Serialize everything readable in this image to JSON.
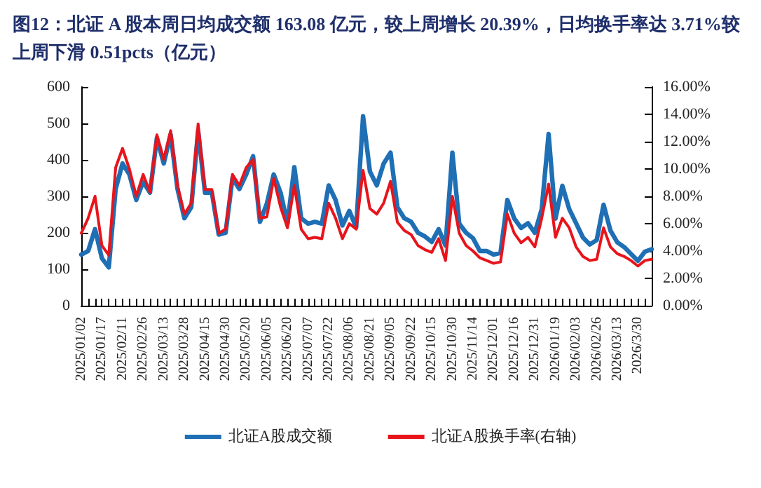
{
  "chart_data": {
    "type": "line",
    "title": "图12：北证 A 股本周日均成交额 163.08 亿元，较上周增长 20.39%，日均换手率达 3.71%较上周下滑 0.51pcts（亿元）",
    "categories": [
      "2025/01/02",
      null,
      null,
      "2025/01/17",
      null,
      null,
      "2025/02/11",
      null,
      null,
      "2025/02/26",
      null,
      null,
      "2025/03/13",
      null,
      null,
      "2025/03/28",
      null,
      null,
      "2025/04/15",
      null,
      null,
      "2025/04/30",
      null,
      null,
      "2025/05/20",
      null,
      null,
      "2025/06/05",
      null,
      null,
      "2025/06/20",
      null,
      null,
      "2025/07/07",
      null,
      null,
      "2025/07/22",
      null,
      null,
      "2025/08/06",
      null,
      null,
      "2025/08/21",
      null,
      null,
      "2025/09/05",
      null,
      null,
      "2025/09/22",
      null,
      null,
      "2025/10/15",
      null,
      null,
      "2025/10/30",
      null,
      null,
      "2025/11/14",
      null,
      null,
      "2025/12/01",
      null,
      null,
      "2025/12/16",
      null,
      null,
      "2025/12/31",
      null,
      null,
      "2026/01/19",
      null,
      null,
      "2026/02/03",
      null,
      null,
      "2026/02/26",
      null,
      null,
      "2026/03/13",
      null,
      null,
      "2026/3/30",
      null,
      null
    ],
    "series": [
      {
        "name": "北证A股成交额",
        "color": "#1f6fb5",
        "values": [
          140,
          150,
          210,
          130,
          105,
          320,
          390,
          360,
          290,
          340,
          310,
          460,
          390,
          470,
          320,
          240,
          270,
          480,
          310,
          310,
          195,
          200,
          350,
          320,
          360,
          410,
          230,
          280,
          360,
          310,
          225,
          380,
          240,
          225,
          230,
          225,
          330,
          290,
          220,
          260,
          215,
          520,
          368,
          330,
          390,
          420,
          270,
          240,
          230,
          200,
          190,
          175,
          210,
          165,
          420,
          225,
          200,
          185,
          150,
          150,
          140,
          145,
          290,
          239,
          213,
          226,
          200,
          265,
          471,
          239,
          329,
          265,
          226,
          187,
          168,
          180,
          277,
          206,
          174,
          161,
          142,
          123,
          148,
          155
        ]
      },
      {
        "name": "北证A股换手率(右轴)",
        "color": "#e8141b",
        "axis": "y2",
        "values": [
          5.3,
          6.4,
          8.0,
          4.4,
          3.7,
          10.1,
          11.5,
          10.0,
          8.0,
          9.6,
          8.3,
          12.5,
          10.7,
          12.8,
          8.8,
          6.7,
          7.5,
          13.3,
          8.5,
          8.5,
          5.3,
          5.6,
          9.6,
          8.8,
          10.1,
          10.7,
          6.4,
          6.5,
          9.3,
          7.2,
          5.7,
          8.8,
          5.6,
          4.9,
          5.0,
          4.9,
          7.5,
          6.4,
          4.9,
          6.0,
          5.6,
          9.9,
          7.1,
          6.7,
          7.5,
          9.1,
          6.1,
          5.5,
          5.2,
          4.4,
          4.1,
          3.9,
          4.9,
          3.3,
          8.0,
          5.3,
          4.4,
          4.0,
          3.5,
          3.3,
          3.1,
          3.2,
          6.7,
          5.3,
          4.6,
          5.0,
          4.3,
          6.4,
          8.9,
          5.0,
          6.4,
          5.7,
          4.3,
          3.6,
          3.3,
          3.4,
          5.7,
          4.3,
          3.8,
          3.6,
          3.3,
          2.9,
          3.3,
          3.4
        ]
      }
    ],
    "ylim": [
      0,
      600
    ],
    "yticks": [
      0,
      100,
      200,
      300,
      400,
      500,
      600
    ],
    "y2lim": [
      0,
      16
    ],
    "y2ticks": [
      {
        "value": 0,
        "label": "0.00%"
      },
      {
        "value": 2,
        "label": "2.00%"
      },
      {
        "value": 4,
        "label": "4.00%"
      },
      {
        "value": 6,
        "label": "6.00%"
      },
      {
        "value": 8,
        "label": "8.00%"
      },
      {
        "value": 10,
        "label": "10.00%"
      },
      {
        "value": 12,
        "label": "12.00%"
      },
      {
        "value": 14,
        "label": "14.00%"
      },
      {
        "value": 16,
        "label": "16.00%"
      }
    ],
    "grid": false,
    "legend": "bottom",
    "marker": "none",
    "line_style": "solid"
  }
}
